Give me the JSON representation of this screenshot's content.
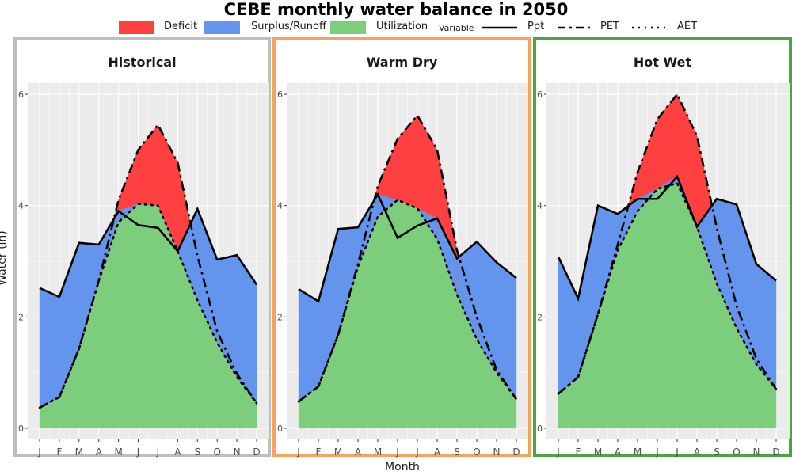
{
  "figure": {
    "title": "CEBE monthly water balance in 2050",
    "xlabel": "Month",
    "ylabel": "Water (in)"
  },
  "legend": {
    "fills": [
      {
        "label": "Deficit",
        "color": "#ff4040"
      },
      {
        "label": "Surplus/Runoff",
        "color": "#6495ed"
      },
      {
        "label": "Utilization",
        "color": "#7ccd7c"
      }
    ],
    "title": "Variable",
    "lines": [
      {
        "label": "Ppt",
        "style": "solid"
      },
      {
        "label": "PET",
        "style": "dashed"
      },
      {
        "label": "AET",
        "style": "dotted"
      }
    ]
  },
  "chart_data": [
    {
      "type": "area",
      "title": "Historical",
      "border_color": "#bebebe",
      "categories": [
        "J",
        "F",
        "M",
        "A",
        "M",
        "J",
        "J",
        "A",
        "S",
        "O",
        "N",
        "D"
      ],
      "ylim": [
        -0.2,
        6.2
      ],
      "yticks": [
        0,
        2,
        4,
        6
      ],
      "grid": true,
      "series": [
        {
          "name": "Ppt",
          "values": [
            2.52,
            2.36,
            3.33,
            3.3,
            3.9,
            3.65,
            3.6,
            3.18,
            3.94,
            3.03,
            3.11,
            2.58
          ]
        },
        {
          "name": "PET",
          "values": [
            0.37,
            0.56,
            1.43,
            2.65,
            4.1,
            5.0,
            5.45,
            4.77,
            3.1,
            1.74,
            0.98,
            0.45
          ]
        },
        {
          "name": "AET",
          "values": [
            0.37,
            0.56,
            1.43,
            2.65,
            3.7,
            4.03,
            4.0,
            3.18,
            2.3,
            1.54,
            0.92,
            0.45
          ]
        }
      ]
    },
    {
      "type": "area",
      "title": "Warm Dry",
      "border_color": "#f4a460",
      "categories": [
        "J",
        "F",
        "M",
        "A",
        "M",
        "J",
        "J",
        "A",
        "S",
        "O",
        "N",
        "D"
      ],
      "ylim": [
        -0.2,
        6.2
      ],
      "yticks": [
        0,
        2,
        4,
        6
      ],
      "grid": true,
      "series": [
        {
          "name": "Ppt",
          "values": [
            2.5,
            2.28,
            3.58,
            3.61,
            4.2,
            3.42,
            3.64,
            3.77,
            3.05,
            3.35,
            2.98,
            2.7
          ]
        },
        {
          "name": "PET",
          "values": [
            0.48,
            0.75,
            1.68,
            2.95,
            4.35,
            5.2,
            5.62,
            5.0,
            3.2,
            2.0,
            1.05,
            0.52
          ]
        },
        {
          "name": "AET",
          "values": [
            0.48,
            0.75,
            1.68,
            2.9,
            3.8,
            4.1,
            3.95,
            3.4,
            2.4,
            1.6,
            1.0,
            0.52
          ]
        }
      ]
    },
    {
      "type": "area",
      "title": "Hot Wet",
      "border_color": "#4aa640",
      "categories": [
        "J",
        "F",
        "M",
        "A",
        "M",
        "J",
        "J",
        "A",
        "S",
        "O",
        "N",
        "D"
      ],
      "ylim": [
        -0.2,
        6.2
      ],
      "yticks": [
        0,
        2,
        4,
        6
      ],
      "grid": true,
      "series": [
        {
          "name": "Ppt",
          "values": [
            3.08,
            2.33,
            4.0,
            3.85,
            4.12,
            4.12,
            4.52,
            3.62,
            4.12,
            4.02,
            2.95,
            2.65
          ]
        },
        {
          "name": "PET",
          "values": [
            0.62,
            0.92,
            2.05,
            3.3,
            4.6,
            5.55,
            6.0,
            5.25,
            3.6,
            2.2,
            1.25,
            0.7
          ]
        },
        {
          "name": "AET",
          "values": [
            0.62,
            0.92,
            2.05,
            3.2,
            3.9,
            4.3,
            4.4,
            3.62,
            2.6,
            1.8,
            1.15,
            0.7
          ]
        }
      ]
    }
  ]
}
